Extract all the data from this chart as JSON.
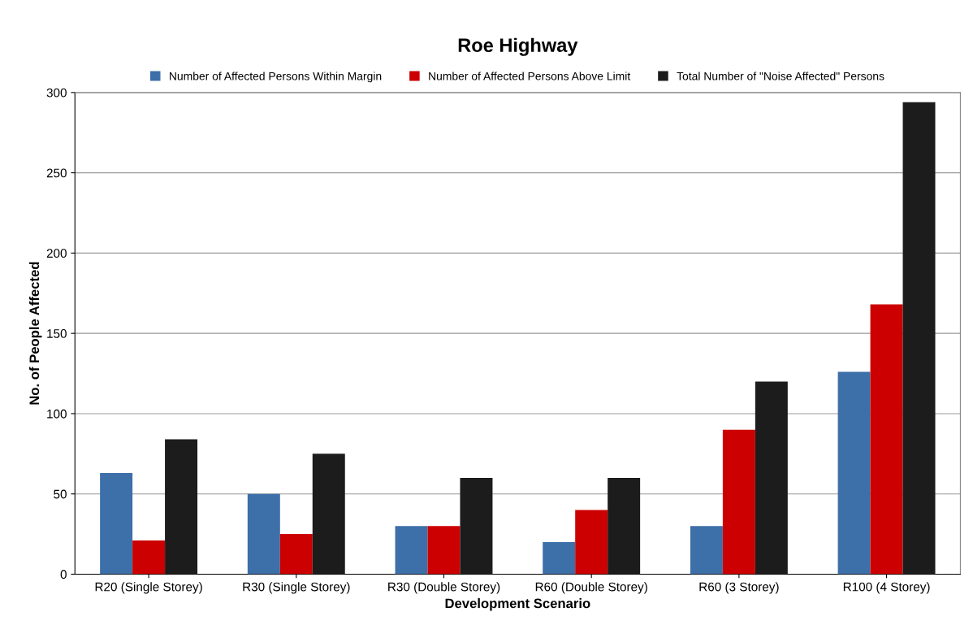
{
  "chart_data": {
    "type": "bar",
    "title": "Roe Highway",
    "xlabel": "Development Scenario",
    "ylabel": "No. of People Affected",
    "categories": [
      "R20 (Single Storey)",
      "R30 (Single Storey)",
      "R30 (Double Storey)",
      "R60 (Double Storey)",
      "R60 (3 Storey)",
      "R100 (4 Storey)"
    ],
    "series": [
      {
        "name": "Number of Affected Persons Within Margin",
        "color": "#3d6fa8",
        "values": [
          63,
          50,
          30,
          20,
          30,
          126
        ]
      },
      {
        "name": "Number of Affected Persons Above Limit",
        "color": "#cc0000",
        "values": [
          21,
          25,
          30,
          40,
          90,
          168
        ]
      },
      {
        "name": "Total Number of \"Noise Affected\" Persons",
        "color": "#1c1c1c",
        "values": [
          84,
          75,
          60,
          60,
          120,
          294
        ]
      }
    ],
    "ylim": [
      0,
      300
    ],
    "yticks": [
      0,
      50,
      100,
      150,
      200,
      250,
      300
    ],
    "grid": "y",
    "legend": "top"
  }
}
